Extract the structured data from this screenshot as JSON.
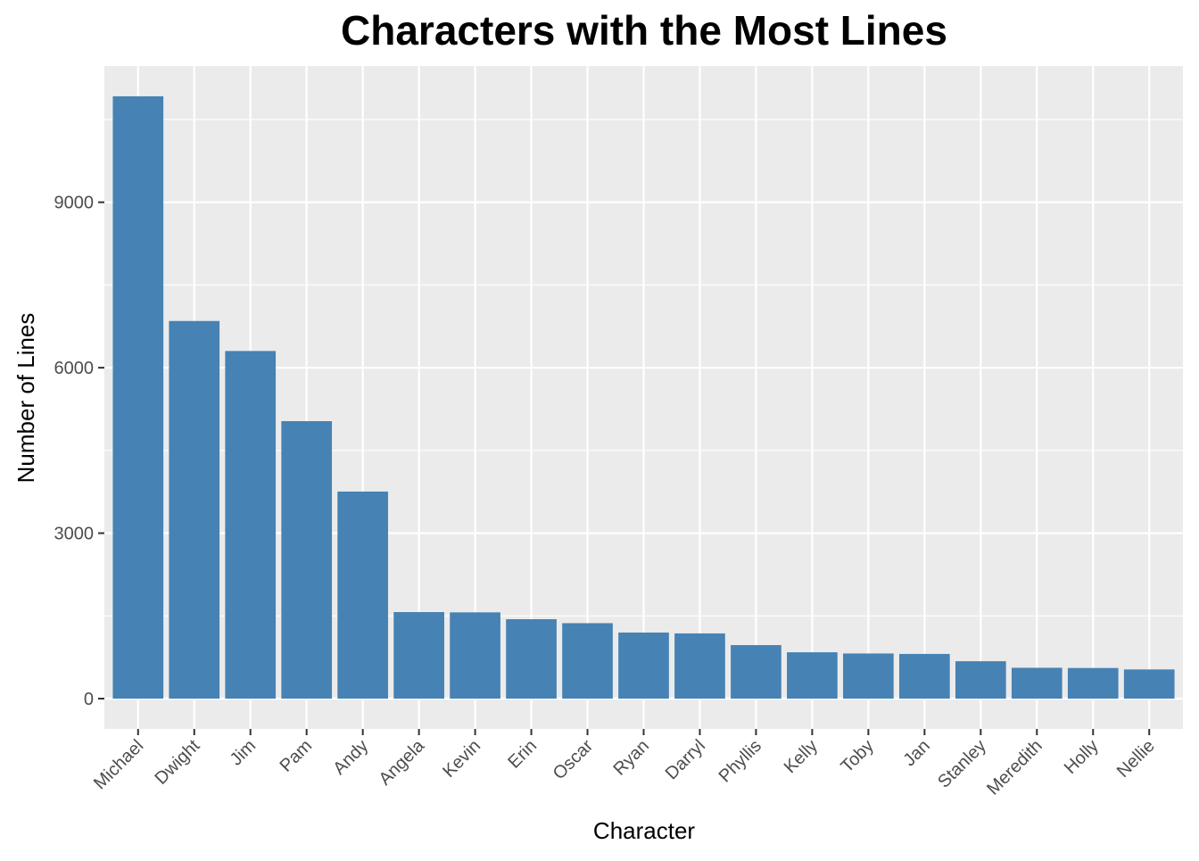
{
  "chart_data": {
    "type": "bar",
    "title": "Characters with the Most Lines",
    "xlabel": "Character",
    "ylabel": "Number of Lines",
    "categories": [
      "Michael",
      "Dwight",
      "Jim",
      "Pam",
      "Andy",
      "Angela",
      "Kevin",
      "Erin",
      "Oscar",
      "Ryan",
      "Darryl",
      "Phyllis",
      "Kelly",
      "Toby",
      "Jan",
      "Stanley",
      "Meredith",
      "Holly",
      "Nellie"
    ],
    "values": [
      10921,
      6847,
      6303,
      5031,
      3754,
      1569,
      1564,
      1440,
      1368,
      1198,
      1182,
      970,
      840,
      818,
      810,
      678,
      559,
      555,
      529
    ],
    "yticks": [
      0,
      3000,
      6000,
      9000
    ],
    "ylim": [
      -550,
      11470
    ],
    "grid": true,
    "bar_color": "#4682B4",
    "panel_color": "#EBEBEB",
    "grid_color": "#FFFFFF"
  }
}
